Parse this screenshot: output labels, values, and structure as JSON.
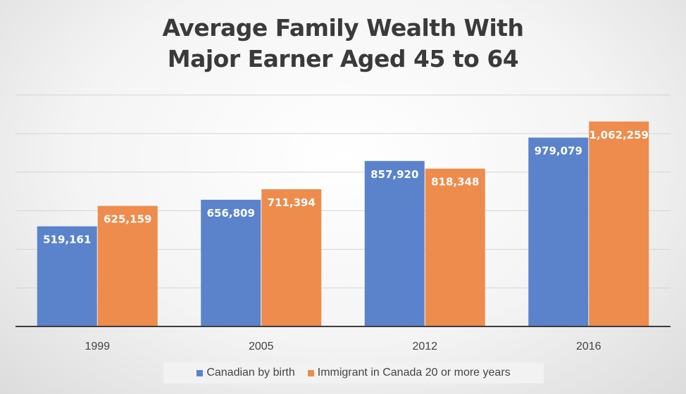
{
  "chart_data": {
    "type": "bar",
    "title_lines": [
      "Average Family Wealth With",
      "Major Earner Aged 45 to 64"
    ],
    "categories": [
      "1999",
      "2005",
      "2012",
      "2016"
    ],
    "series": [
      {
        "name": "Canadian by birth",
        "color": "#5b83cb",
        "values": [
          519161,
          656809,
          857920,
          979079
        ],
        "labels": [
          "519,161",
          "656,809",
          "857,920",
          "979,079"
        ]
      },
      {
        "name": "Immigrant in Canada 20 or more years",
        "color": "#ed8c4c",
        "values": [
          625159,
          711394,
          818348,
          1062259
        ],
        "labels": [
          "625,159",
          "711,394",
          "818,348",
          "1,062,259"
        ]
      }
    ],
    "ylim": [
      0,
      1200000
    ],
    "grid": true,
    "legend_position": "bottom"
  }
}
